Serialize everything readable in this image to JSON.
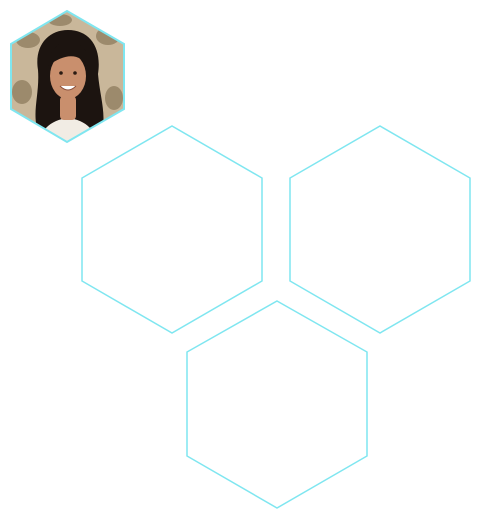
{
  "colors": {
    "hex_stroke": "#7fe6f0",
    "background": "#ffffff",
    "avatar_wall": "#c9b79a",
    "avatar_wall_dark": "#9c8a6c",
    "avatar_hair": "#1c1410",
    "avatar_skin": "#c98f6d",
    "avatar_shirt": "#f1ece4"
  },
  "avatar": {
    "description_icon": "profile-photo"
  },
  "tiles": [
    {
      "id": "tile-top-left"
    },
    {
      "id": "tile-top-right"
    },
    {
      "id": "tile-bottom"
    }
  ]
}
